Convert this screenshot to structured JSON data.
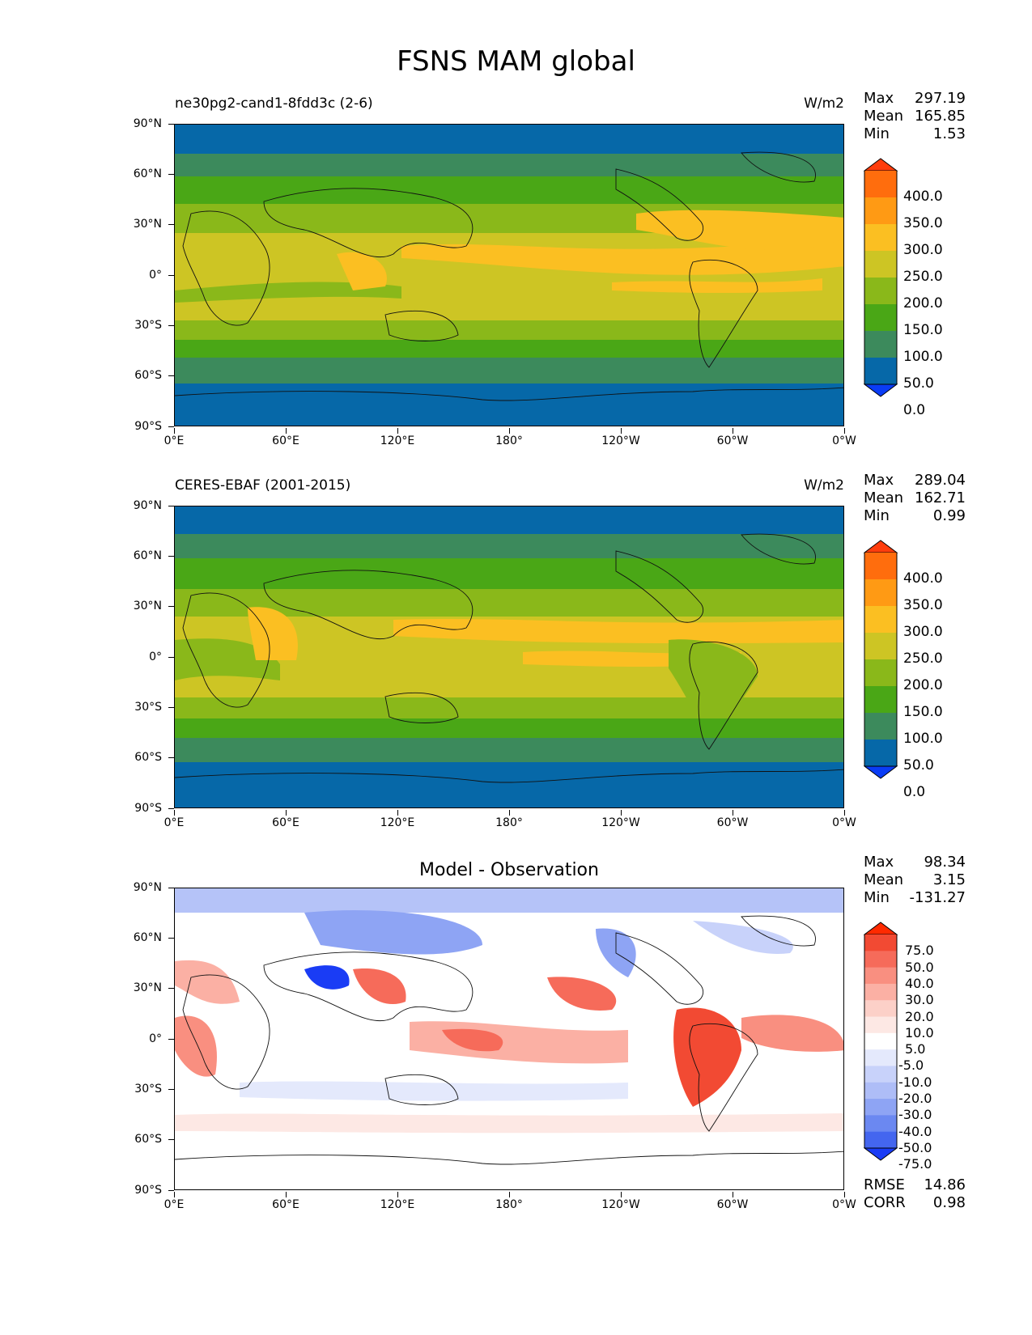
{
  "title": "FSNS MAM global",
  "panels": [
    {
      "left_title": "ne30pg2-cand1-8fdd3c (2-6)",
      "right_title": "W/m2",
      "stats": {
        "max_label": "Max",
        "max": "297.19",
        "mean_label": "Mean",
        "mean": "165.85",
        "min_label": "Min",
        "min": "1.53"
      },
      "colorbar": {
        "levels": [
          "400.0",
          "350.0",
          "300.0",
          "250.0",
          "200.0",
          "150.0",
          "100.0",
          "50.0",
          "0.0"
        ],
        "colors": [
          "#ff3d0d",
          "#ff6d0d",
          "#ff9a14",
          "#fbbf22",
          "#cdc524",
          "#8ab81a",
          "#4aa716",
          "#3c8a5c",
          "#0668a8",
          "#0a3cf5"
        ]
      }
    },
    {
      "left_title": "CERES-EBAF (2001-2015)",
      "right_title": "W/m2",
      "stats": {
        "max_label": "Max",
        "max": "289.04",
        "mean_label": "Mean",
        "mean": "162.71",
        "min_label": "Min",
        "min": "0.99"
      },
      "colorbar": {
        "levels": [
          "400.0",
          "350.0",
          "300.0",
          "250.0",
          "200.0",
          "150.0",
          "100.0",
          "50.0",
          "0.0"
        ],
        "colors": [
          "#ff3d0d",
          "#ff6d0d",
          "#ff9a14",
          "#fbbf22",
          "#cdc524",
          "#8ab81a",
          "#4aa716",
          "#3c8a5c",
          "#0668a8",
          "#0a3cf5"
        ]
      }
    },
    {
      "center_title": "Model - Observation",
      "stats": {
        "max_label": "Max",
        "max": "98.34",
        "mean_label": "Mean",
        "mean": "3.15",
        "min_label": "Min",
        "min": "-131.27"
      },
      "colorbar": {
        "levels": [
          "75.0",
          "50.0",
          "40.0",
          "30.0",
          "20.0",
          "10.0",
          "5.0",
          "-5.0",
          "-10.0",
          "-20.0",
          "-30.0",
          "-40.0",
          "-50.0",
          "-75.0"
        ],
        "colors": [
          "#ff2a00",
          "#f24a33",
          "#f66b5a",
          "#f98f80",
          "#fbb0a4",
          "#fcd0c8",
          "#fde8e4",
          "#ffffff",
          "#e4e9fc",
          "#c8d2fa",
          "#aebdf7",
          "#8ea4f4",
          "#6b88f1",
          "#4466ef",
          "#1a3cf5"
        ]
      },
      "footer": {
        "rmse_label": "RMSE",
        "rmse": "14.86",
        "corr_label": "CORR",
        "corr": "0.98"
      }
    }
  ],
  "axes": {
    "y_ticks": [
      "90°N",
      "60°N",
      "30°N",
      "0°",
      "30°S",
      "60°S",
      "90°S"
    ],
    "x_ticks": [
      "0°E",
      "60°E",
      "120°E",
      "180°",
      "120°W",
      "60°W",
      "0°W"
    ]
  },
  "map_data": {
    "field_bands_model": [
      {
        "lat_from": 90,
        "lat_to": 70,
        "value": "50.0-100.0",
        "color": "#0668a8"
      },
      {
        "lat_from": 70,
        "lat_to": 55,
        "value": "100.0-150.0",
        "color": "#3c8a5c"
      },
      {
        "lat_from": 55,
        "lat_to": 40,
        "value": "150.0-200.0",
        "color": "#4aa716"
      },
      {
        "lat_from": 40,
        "lat_to": 25,
        "value": "200.0-250.0",
        "color": "#8ab81a"
      },
      {
        "lat_from": 25,
        "lat_to": -25,
        "value": "250.0-300.0",
        "color": "#cdc524"
      },
      {
        "lat_from": -25,
        "lat_to": -40,
        "value": "200.0-250.0",
        "color": "#8ab81a"
      },
      {
        "lat_from": -40,
        "lat_to": -55,
        "value": "100.0-150.0",
        "color": "#3c8a5c"
      },
      {
        "lat_from": -55,
        "lat_to": -90,
        "value": "50.0-100.0",
        "color": "#0668a8"
      }
    ]
  }
}
